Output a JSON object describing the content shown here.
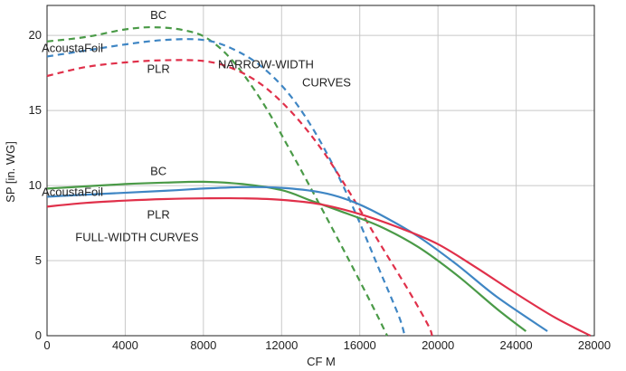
{
  "chart_data": {
    "type": "line",
    "xlabel": "CF M",
    "ylabel": "SP [in. WG]",
    "xlim": [
      0,
      28000
    ],
    "ylim": [
      0,
      22
    ],
    "x_ticks": [
      0,
      4000,
      8000,
      12000,
      16000,
      20000,
      24000,
      28000
    ],
    "y_ticks": [
      0,
      5,
      10,
      15,
      20
    ],
    "grid": true,
    "annotations": [
      {
        "text": "BC",
        "x": 5700,
        "y": 21.1
      },
      {
        "text": "AcoustaFoil",
        "x": 1300,
        "y": 18.9
      },
      {
        "text": "PLR",
        "x": 5700,
        "y": 17.5
      },
      {
        "text": "NARROW-WIDTH",
        "x": 11200,
        "y": 17.8
      },
      {
        "text": "CURVES",
        "x": 14300,
        "y": 16.6
      },
      {
        "text": "BC",
        "x": 5700,
        "y": 10.7
      },
      {
        "text": "AcoustaFoil",
        "x": 1300,
        "y": 9.3
      },
      {
        "text": "PLR",
        "x": 5700,
        "y": 7.8
      },
      {
        "text": "FULL-WIDTH CURVES",
        "x": 4600,
        "y": 6.3
      }
    ],
    "series": [
      {
        "group": "NARROW-WIDTH CURVES",
        "label": "BC",
        "style": "dashed",
        "color": "#4a9a47",
        "points": [
          [
            0,
            19.6
          ],
          [
            2000,
            19.9
          ],
          [
            4000,
            20.4
          ],
          [
            5500,
            20.55
          ],
          [
            7000,
            20.35
          ],
          [
            8200,
            19.8
          ],
          [
            9500,
            18.3
          ],
          [
            11000,
            15.6
          ],
          [
            12500,
            12.2
          ],
          [
            14000,
            8.6
          ],
          [
            15500,
            4.9
          ],
          [
            16800,
            1.6
          ],
          [
            17400,
            0
          ]
        ]
      },
      {
        "group": "NARROW-WIDTH CURVES",
        "label": "AcoustaFoil",
        "style": "dashed",
        "color": "#3f86c4",
        "points": [
          [
            0,
            18.6
          ],
          [
            2000,
            19.0
          ],
          [
            4000,
            19.4
          ],
          [
            6000,
            19.7
          ],
          [
            8000,
            19.7
          ],
          [
            9500,
            19.1
          ],
          [
            11000,
            17.9
          ],
          [
            12500,
            15.9
          ],
          [
            14000,
            12.9
          ],
          [
            15500,
            9.0
          ],
          [
            17000,
            4.4
          ],
          [
            18000,
            1.3
          ],
          [
            18300,
            0
          ]
        ]
      },
      {
        "group": "NARROW-WIDTH CURVES",
        "label": "PLR",
        "style": "dashed",
        "color": "#e0304a",
        "points": [
          [
            0,
            17.3
          ],
          [
            2000,
            17.9
          ],
          [
            4000,
            18.2
          ],
          [
            6000,
            18.35
          ],
          [
            8000,
            18.3
          ],
          [
            9500,
            17.8
          ],
          [
            11000,
            16.7
          ],
          [
            12500,
            14.9
          ],
          [
            14000,
            12.5
          ],
          [
            15500,
            9.5
          ],
          [
            17000,
            6.2
          ],
          [
            18500,
            3.0
          ],
          [
            19500,
            0.7
          ],
          [
            19700,
            0
          ]
        ]
      },
      {
        "group": "FULL-WIDTH CURVES",
        "label": "BC",
        "style": "solid",
        "color": "#4a9a47",
        "points": [
          [
            0,
            9.8
          ],
          [
            2000,
            9.95
          ],
          [
            4000,
            10.1
          ],
          [
            6000,
            10.2
          ],
          [
            8000,
            10.25
          ],
          [
            10000,
            10.1
          ],
          [
            12000,
            9.7
          ],
          [
            13500,
            9.0
          ],
          [
            15000,
            8.3
          ],
          [
            17000,
            7.3
          ],
          [
            19000,
            5.9
          ],
          [
            21000,
            4.0
          ],
          [
            23000,
            1.8
          ],
          [
            24500,
            0.3
          ]
        ]
      },
      {
        "group": "FULL-WIDTH CURVES",
        "label": "AcoustaFoil",
        "style": "solid",
        "color": "#3f86c4",
        "points": [
          [
            0,
            9.25
          ],
          [
            1300,
            9.35
          ],
          [
            6000,
            9.65
          ],
          [
            8000,
            9.8
          ],
          [
            10000,
            9.9
          ],
          [
            12000,
            9.85
          ],
          [
            14000,
            9.55
          ],
          [
            15500,
            9.0
          ],
          [
            17000,
            8.1
          ],
          [
            19000,
            6.6
          ],
          [
            21000,
            4.7
          ],
          [
            23000,
            2.6
          ],
          [
            25600,
            0.3
          ]
        ]
      },
      {
        "group": "FULL-WIDTH CURVES",
        "label": "PLR",
        "style": "solid",
        "color": "#e0304a",
        "points": [
          [
            0,
            8.6
          ],
          [
            2000,
            8.85
          ],
          [
            4000,
            9.0
          ],
          [
            6000,
            9.1
          ],
          [
            8000,
            9.15
          ],
          [
            10000,
            9.15
          ],
          [
            12000,
            9.05
          ],
          [
            14000,
            8.75
          ],
          [
            16000,
            8.1
          ],
          [
            18000,
            7.2
          ],
          [
            20000,
            6.1
          ],
          [
            22000,
            4.5
          ],
          [
            24000,
            2.8
          ],
          [
            26000,
            1.2
          ],
          [
            27800,
            0
          ]
        ]
      }
    ]
  }
}
